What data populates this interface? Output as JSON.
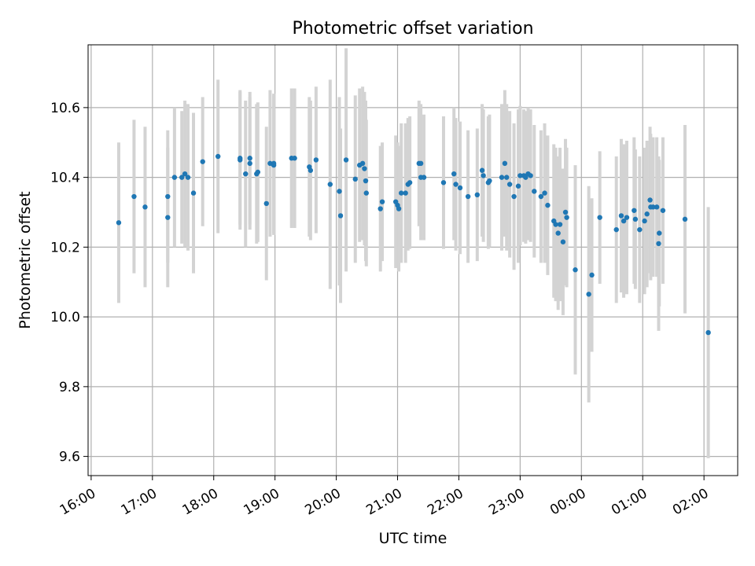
{
  "chart_data": {
    "type": "scatter",
    "title": "Photometric offset variation",
    "xlabel": "UTC time",
    "ylabel": "Photometric offset",
    "xlim": [
      15.95,
      26.55
    ],
    "ylim": [
      9.545,
      10.78
    ],
    "xtick_values": [
      16,
      17,
      18,
      19,
      20,
      21,
      22,
      23,
      24,
      25,
      26
    ],
    "xtick_labels": [
      "16:00",
      "17:00",
      "18:00",
      "19:00",
      "20:00",
      "21:00",
      "22:00",
      "23:00",
      "00:00",
      "01:00",
      "02:00"
    ],
    "ytick_values": [
      9.6,
      9.8,
      10.0,
      10.2,
      10.4,
      10.6
    ],
    "ytick_labels": [
      "9.6",
      "9.8",
      "10.0",
      "10.2",
      "10.4",
      "10.6"
    ],
    "grid": true,
    "marker_color": "#1f77b4",
    "errorbar_color": "#d3d3d3",
    "points": [
      {
        "t": 16.45,
        "y": 10.27,
        "err": 0.23
      },
      {
        "t": 16.7,
        "y": 10.345,
        "err": 0.22
      },
      {
        "t": 16.88,
        "y": 10.315,
        "err": 0.23
      },
      {
        "t": 17.25,
        "y": 10.285,
        "err": 0.2
      },
      {
        "t": 17.25,
        "y": 10.345,
        "err": 0.19
      },
      {
        "t": 17.36,
        "y": 10.4,
        "err": 0.2
      },
      {
        "t": 17.48,
        "y": 10.4,
        "err": 0.19
      },
      {
        "t": 17.53,
        "y": 10.41,
        "err": 0.21
      },
      {
        "t": 17.58,
        "y": 10.4,
        "err": 0.21
      },
      {
        "t": 17.67,
        "y": 10.355,
        "err": 0.23
      },
      {
        "t": 17.82,
        "y": 10.445,
        "err": 0.185
      },
      {
        "t": 18.07,
        "y": 10.46,
        "err": 0.22
      },
      {
        "t": 18.43,
        "y": 10.45,
        "err": 0.2
      },
      {
        "t": 18.43,
        "y": 10.455,
        "err": 0.19
      },
      {
        "t": 18.52,
        "y": 10.41,
        "err": 0.21
      },
      {
        "t": 18.59,
        "y": 10.455,
        "err": 0.19
      },
      {
        "t": 18.59,
        "y": 10.44,
        "err": 0.19
      },
      {
        "t": 18.7,
        "y": 10.41,
        "err": 0.2
      },
      {
        "t": 18.72,
        "y": 10.415,
        "err": 0.2
      },
      {
        "t": 18.86,
        "y": 10.325,
        "err": 0.22
      },
      {
        "t": 18.92,
        "y": 10.44,
        "err": 0.21
      },
      {
        "t": 18.98,
        "y": 10.44,
        "err": 0.2
      },
      {
        "t": 18.98,
        "y": 10.435,
        "err": 0.2
      },
      {
        "t": 19.27,
        "y": 10.455,
        "err": 0.2
      },
      {
        "t": 19.32,
        "y": 10.455,
        "err": 0.2
      },
      {
        "t": 19.56,
        "y": 10.43,
        "err": 0.2
      },
      {
        "t": 19.58,
        "y": 10.42,
        "err": 0.2
      },
      {
        "t": 19.67,
        "y": 10.45,
        "err": 0.21
      },
      {
        "t": 19.9,
        "y": 10.38,
        "err": 0.3
      },
      {
        "t": 20.05,
        "y": 10.36,
        "err": 0.27
      },
      {
        "t": 20.07,
        "y": 10.29,
        "err": 0.25
      },
      {
        "t": 20.16,
        "y": 10.45,
        "err": 0.32
      },
      {
        "t": 20.31,
        "y": 10.395,
        "err": 0.24
      },
      {
        "t": 20.38,
        "y": 10.435,
        "err": 0.22
      },
      {
        "t": 20.43,
        "y": 10.44,
        "err": 0.22
      },
      {
        "t": 20.46,
        "y": 10.425,
        "err": 0.22
      },
      {
        "t": 20.48,
        "y": 10.39,
        "err": 0.23
      },
      {
        "t": 20.49,
        "y": 10.355,
        "err": 0.21
      },
      {
        "t": 20.72,
        "y": 10.31,
        "err": 0.18
      },
      {
        "t": 20.75,
        "y": 10.33,
        "err": 0.17
      },
      {
        "t": 20.97,
        "y": 10.33,
        "err": 0.19
      },
      {
        "t": 21.0,
        "y": 10.32,
        "err": 0.18
      },
      {
        "t": 21.02,
        "y": 10.31,
        "err": 0.18
      },
      {
        "t": 21.06,
        "y": 10.355,
        "err": 0.2
      },
      {
        "t": 21.13,
        "y": 10.355,
        "err": 0.2
      },
      {
        "t": 21.17,
        "y": 10.38,
        "err": 0.19
      },
      {
        "t": 21.2,
        "y": 10.385,
        "err": 0.19
      },
      {
        "t": 21.35,
        "y": 10.44,
        "err": 0.18
      },
      {
        "t": 21.38,
        "y": 10.44,
        "err": 0.17
      },
      {
        "t": 21.38,
        "y": 10.4,
        "err": 0.18
      },
      {
        "t": 21.43,
        "y": 10.4,
        "err": 0.18
      },
      {
        "t": 21.75,
        "y": 10.385,
        "err": 0.19
      },
      {
        "t": 21.92,
        "y": 10.41,
        "err": 0.19
      },
      {
        "t": 21.95,
        "y": 10.38,
        "err": 0.19
      },
      {
        "t": 22.02,
        "y": 10.37,
        "err": 0.19
      },
      {
        "t": 22.15,
        "y": 10.345,
        "err": 0.19
      },
      {
        "t": 22.3,
        "y": 10.35,
        "err": 0.19
      },
      {
        "t": 22.38,
        "y": 10.42,
        "err": 0.19
      },
      {
        "t": 22.4,
        "y": 10.405,
        "err": 0.19
      },
      {
        "t": 22.48,
        "y": 10.385,
        "err": 0.19
      },
      {
        "t": 22.5,
        "y": 10.39,
        "err": 0.19
      },
      {
        "t": 22.7,
        "y": 10.4,
        "err": 0.21
      },
      {
        "t": 22.75,
        "y": 10.44,
        "err": 0.21
      },
      {
        "t": 22.78,
        "y": 10.4,
        "err": 0.21
      },
      {
        "t": 22.83,
        "y": 10.38,
        "err": 0.21
      },
      {
        "t": 22.9,
        "y": 10.345,
        "err": 0.21
      },
      {
        "t": 22.97,
        "y": 10.375,
        "err": 0.22
      },
      {
        "t": 23.0,
        "y": 10.405,
        "err": 0.2
      },
      {
        "t": 23.06,
        "y": 10.405,
        "err": 0.19
      },
      {
        "t": 23.09,
        "y": 10.4,
        "err": 0.19
      },
      {
        "t": 23.13,
        "y": 10.41,
        "err": 0.19
      },
      {
        "t": 23.17,
        "y": 10.405,
        "err": 0.19
      },
      {
        "t": 23.23,
        "y": 10.36,
        "err": 0.19
      },
      {
        "t": 23.34,
        "y": 10.345,
        "err": 0.19
      },
      {
        "t": 23.4,
        "y": 10.355,
        "err": 0.2
      },
      {
        "t": 23.45,
        "y": 10.32,
        "err": 0.2
      },
      {
        "t": 23.55,
        "y": 10.275,
        "err": 0.22
      },
      {
        "t": 23.58,
        "y": 10.265,
        "err": 0.22
      },
      {
        "t": 23.62,
        "y": 10.24,
        "err": 0.22
      },
      {
        "t": 23.65,
        "y": 10.265,
        "err": 0.22
      },
      {
        "t": 23.7,
        "y": 10.215,
        "err": 0.21
      },
      {
        "t": 23.74,
        "y": 10.3,
        "err": 0.21
      },
      {
        "t": 23.76,
        "y": 10.285,
        "err": 0.2
      },
      {
        "t": 23.9,
        "y": 10.135,
        "err": 0.3
      },
      {
        "t": 24.12,
        "y": 10.065,
        "err": 0.31
      },
      {
        "t": 24.17,
        "y": 10.12,
        "err": 0.22
      },
      {
        "t": 24.3,
        "y": 10.285,
        "err": 0.19
      },
      {
        "t": 24.57,
        "y": 10.25,
        "err": 0.21
      },
      {
        "t": 24.65,
        "y": 10.29,
        "err": 0.22
      },
      {
        "t": 24.69,
        "y": 10.275,
        "err": 0.22
      },
      {
        "t": 24.74,
        "y": 10.285,
        "err": 0.22
      },
      {
        "t": 24.86,
        "y": 10.305,
        "err": 0.21
      },
      {
        "t": 24.88,
        "y": 10.28,
        "err": 0.2
      },
      {
        "t": 24.95,
        "y": 10.25,
        "err": 0.21
      },
      {
        "t": 25.03,
        "y": 10.275,
        "err": 0.21
      },
      {
        "t": 25.07,
        "y": 10.295,
        "err": 0.21
      },
      {
        "t": 25.12,
        "y": 10.335,
        "err": 0.21
      },
      {
        "t": 25.13,
        "y": 10.315,
        "err": 0.21
      },
      {
        "t": 25.17,
        "y": 10.315,
        "err": 0.2
      },
      {
        "t": 25.23,
        "y": 10.315,
        "err": 0.2
      },
      {
        "t": 25.26,
        "y": 10.21,
        "err": 0.25
      },
      {
        "t": 25.27,
        "y": 10.24,
        "err": 0.21
      },
      {
        "t": 25.33,
        "y": 10.305,
        "err": 0.21
      },
      {
        "t": 25.69,
        "y": 10.28,
        "err": 0.27
      },
      {
        "t": 26.07,
        "y": 9.955,
        "err": 0.36
      }
    ]
  }
}
